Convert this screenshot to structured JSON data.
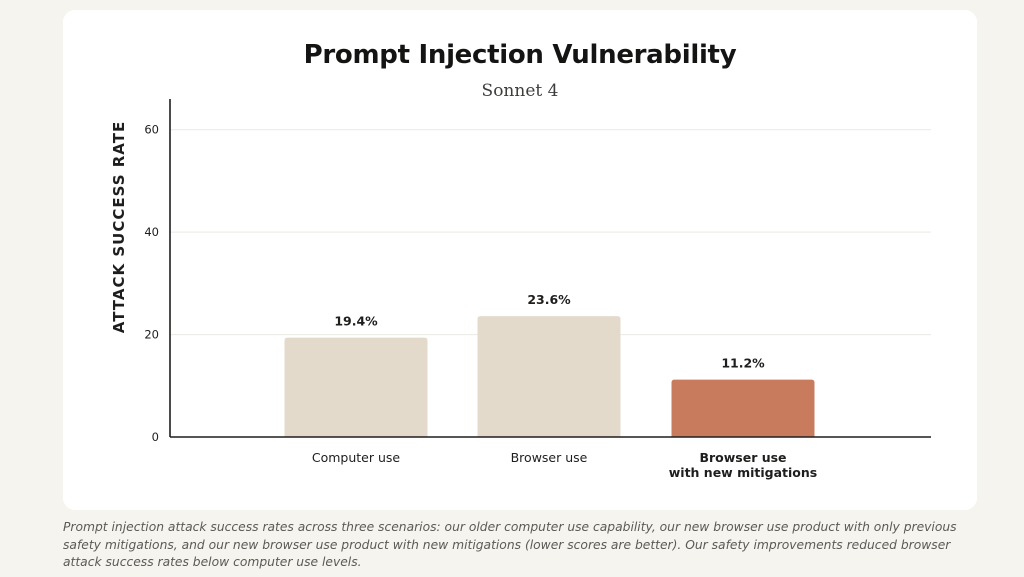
{
  "chart_data": {
    "type": "bar",
    "title": "Prompt Injection Vulnerability",
    "subtitle": "Sonnet 4",
    "ylabel": "ATTACK SUCCESS RATE",
    "xlabel": "",
    "ylim": [
      0,
      66
    ],
    "yticks": [
      0,
      20,
      40,
      60
    ],
    "grid": true,
    "legend": "none",
    "categories": [
      [
        "Computer use"
      ],
      [
        "Browser use"
      ],
      [
        "Browser use",
        "with new mitigations"
      ]
    ],
    "category_bold": [
      false,
      false,
      true
    ],
    "values": [
      19.4,
      23.6,
      11.2
    ],
    "data_labels": [
      "19.4%",
      "23.6%",
      "11.2%"
    ],
    "bar_colors": [
      "#e3dacc",
      "#e3dacc",
      "#c97c5d"
    ]
  },
  "colors": {
    "background": "#f5f4ef",
    "card": "#ffffff",
    "neutral_bar": "#e3dacc",
    "accent_bar": "#c97c5d",
    "axis": "#1f1e1d",
    "grid": "#ebe9e3"
  },
  "caption": "Prompt injection attack success rates across three scenarios: our older computer use capability, our new browser use product with only previous safety mitigations, and our new browser use product with new mitigations (lower scores are better). Our safety improvements reduced browser attack success rates below computer use levels."
}
